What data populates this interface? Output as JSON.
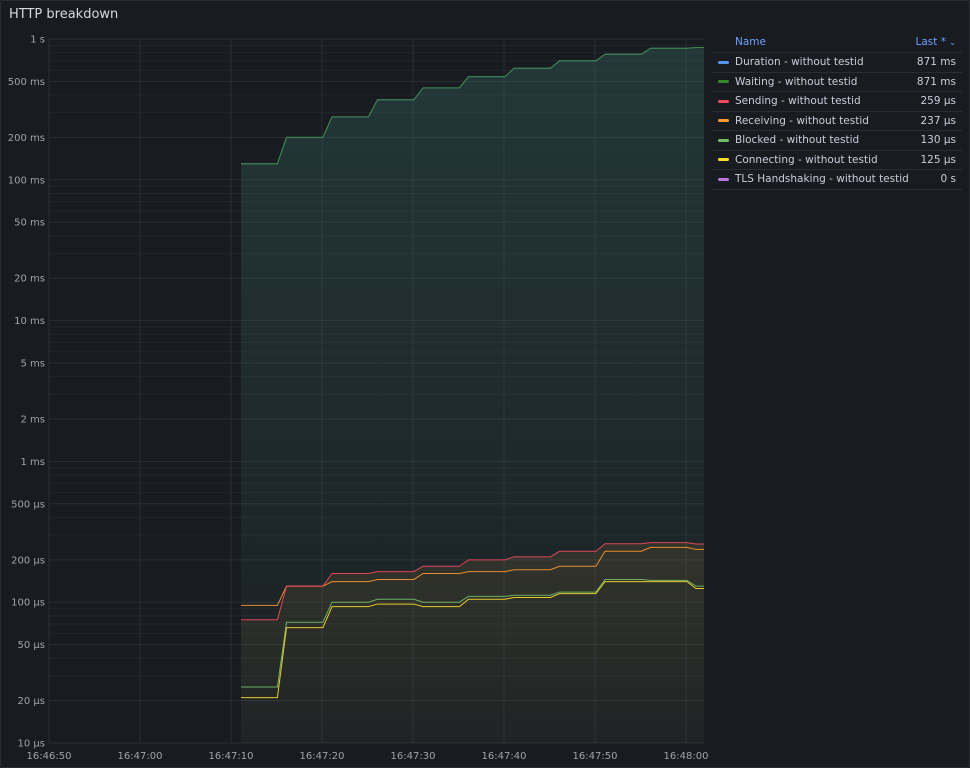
{
  "panel": {
    "title": "HTTP breakdown"
  },
  "legend": {
    "name_header": "Name",
    "value_header": "Last *",
    "sort_icon": "chevron-down-icon"
  },
  "chart_data": {
    "type": "line",
    "title": "HTTP breakdown",
    "y_scale": "log10",
    "ylim_seconds": [
      1e-05,
      1
    ],
    "y_ticks": [
      {
        "v": 1,
        "label": "1 s"
      },
      {
        "v": 0.5,
        "label": "500 ms"
      },
      {
        "v": 0.2,
        "label": "200 ms"
      },
      {
        "v": 0.1,
        "label": "100 ms"
      },
      {
        "v": 0.05,
        "label": "50 ms"
      },
      {
        "v": 0.02,
        "label": "20 ms"
      },
      {
        "v": 0.01,
        "label": "10 ms"
      },
      {
        "v": 0.005,
        "label": "5 ms"
      },
      {
        "v": 0.002,
        "label": "2 ms"
      },
      {
        "v": 0.001,
        "label": "1 ms"
      },
      {
        "v": 0.0005,
        "label": "500 µs"
      },
      {
        "v": 0.0002,
        "label": "200 µs"
      },
      {
        "v": 0.0001,
        "label": "100 µs"
      },
      {
        "v": 5e-05,
        "label": "50 µs"
      },
      {
        "v": 2e-05,
        "label": "20 µs"
      },
      {
        "v": 1e-05,
        "label": "10 µs"
      }
    ],
    "x_range_seconds_after_16_46_50": [
      0,
      72
    ],
    "x_ticks": [
      {
        "t": 0,
        "label": "16:46:50"
      },
      {
        "t": 10,
        "label": "16:47:00"
      },
      {
        "t": 20,
        "label": "16:47:10"
      },
      {
        "t": 30,
        "label": "16:47:20"
      },
      {
        "t": 40,
        "label": "16:47:30"
      },
      {
        "t": 50,
        "label": "16:47:40"
      },
      {
        "t": 60,
        "label": "16:47:50"
      },
      {
        "t": 70,
        "label": "16:48:00"
      }
    ],
    "series_start_t": 21.1,
    "step_seconds": 5,
    "series": [
      {
        "name": "Duration - without testid",
        "color": "#5794f2",
        "last": "871 ms",
        "values_s": [
          0.13,
          0.2,
          0.28,
          0.37,
          0.45,
          0.54,
          0.62,
          0.7,
          0.78,
          0.86,
          0.871
        ]
      },
      {
        "name": "Waiting - without testid",
        "color": "#37872d",
        "last": "871 ms",
        "values_s": [
          0.13,
          0.2,
          0.28,
          0.37,
          0.45,
          0.54,
          0.62,
          0.7,
          0.78,
          0.86,
          0.871
        ]
      },
      {
        "name": "Sending - without testid",
        "color": "#f2495c",
        "last": "259 µs",
        "values_s": [
          7.5e-05,
          0.00013,
          0.00016,
          0.000165,
          0.00018,
          0.0002,
          0.00021,
          0.00023,
          0.00026,
          0.000265,
          0.000259
        ]
      },
      {
        "name": "Receiving - without testid",
        "color": "#ff9830",
        "last": "237 µs",
        "values_s": [
          9.5e-05,
          0.00013,
          0.00014,
          0.000145,
          0.00016,
          0.000165,
          0.00017,
          0.00018,
          0.00023,
          0.000245,
          0.000237
        ]
      },
      {
        "name": "Blocked - without testid",
        "color": "#73bf69",
        "last": "130 µs",
        "values_s": [
          2.5e-05,
          7.2e-05,
          0.0001,
          0.000105,
          0.0001,
          0.00011,
          0.000112,
          0.000118,
          0.000145,
          0.000143,
          0.00013
        ]
      },
      {
        "name": "Connecting - without testid",
        "color": "#fade2a",
        "last": "125 µs",
        "values_s": [
          2.1e-05,
          6.6e-05,
          9.3e-05,
          9.7e-05,
          9.3e-05,
          0.000105,
          0.000108,
          0.000115,
          0.00014,
          0.00014,
          0.000125
        ]
      },
      {
        "name": "TLS Handshaking - without testid",
        "color": "#b877d9",
        "last": "0 s",
        "values_s": []
      }
    ]
  }
}
